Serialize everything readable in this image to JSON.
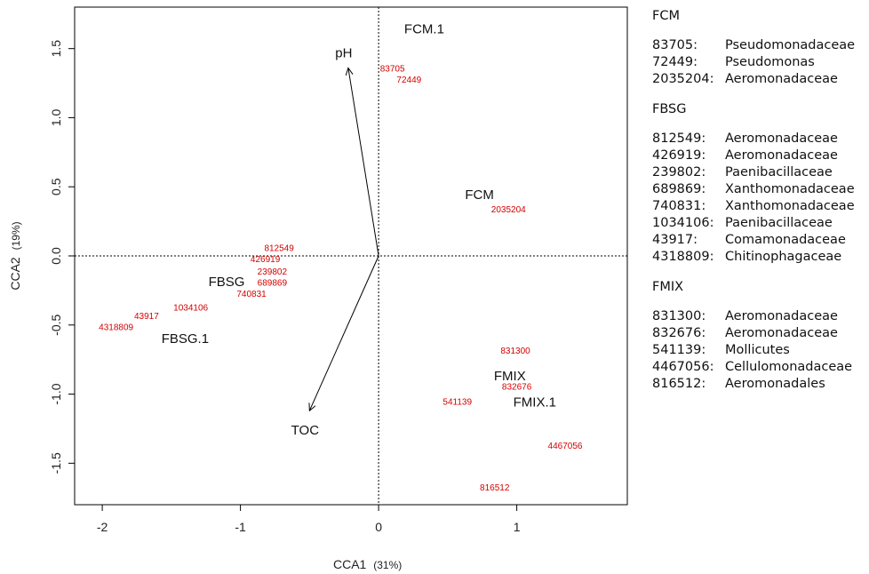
{
  "chart_data": {
    "type": "scatter",
    "xlabel": "CCA1",
    "xlabel_unit": "(31%)",
    "ylabel": "CCA2",
    "ylabel_unit": "(19%)",
    "xlim": [
      -2.2,
      1.8
    ],
    "ylim": [
      -1.8,
      1.8
    ],
    "x_ticks": [
      -2,
      -1,
      0,
      1
    ],
    "y_ticks": [
      -1.5,
      -1.0,
      -0.5,
      0.0,
      0.5,
      1.0,
      1.5
    ],
    "x_tick_labels": [
      "-2",
      "-1",
      "0",
      "1"
    ],
    "y_tick_labels": [
      "-1.5",
      "-1.0",
      "-0.5",
      "0.0",
      "0.5",
      "1.0",
      "1.5"
    ],
    "reference_lines": {
      "x": 0,
      "y": 0,
      "style": "dotted"
    },
    "grid": false,
    "arrows": [
      {
        "name": "pH",
        "x": -0.22,
        "y": 1.36
      },
      {
        "name": "TOC",
        "x": -0.5,
        "y": -1.12
      }
    ],
    "sites": [
      {
        "name": "FCM.1",
        "x": 0.33,
        "y": 1.64
      },
      {
        "name": "FCM",
        "x": 0.73,
        "y": 0.44
      },
      {
        "name": "FBSG",
        "x": -1.1,
        "y": -0.19
      },
      {
        "name": "FBSG.1",
        "x": -1.4,
        "y": -0.6
      },
      {
        "name": "FMIX",
        "x": 0.95,
        "y": -0.87
      },
      {
        "name": "FMIX.1",
        "x": 1.13,
        "y": -1.06
      }
    ],
    "species": [
      {
        "name": "83705",
        "x": 0.1,
        "y": 1.35
      },
      {
        "name": "72449",
        "x": 0.22,
        "y": 1.27
      },
      {
        "name": "2035204",
        "x": 0.94,
        "y": 0.33
      },
      {
        "name": "812549",
        "x": -0.72,
        "y": 0.05
      },
      {
        "name": "426919",
        "x": -0.82,
        "y": -0.03
      },
      {
        "name": "239802",
        "x": -0.77,
        "y": -0.12
      },
      {
        "name": "689869",
        "x": -0.77,
        "y": -0.2
      },
      {
        "name": "740831",
        "x": -0.92,
        "y": -0.28
      },
      {
        "name": "1034106",
        "x": -1.36,
        "y": -0.38
      },
      {
        "name": "43917",
        "x": -1.68,
        "y": -0.44
      },
      {
        "name": "4318809",
        "x": -1.9,
        "y": -0.52
      },
      {
        "name": "831300",
        "x": 0.99,
        "y": -0.69
      },
      {
        "name": "832676",
        "x": 1.0,
        "y": -0.95
      },
      {
        "name": "541139",
        "x": 0.57,
        "y": -1.06
      },
      {
        "name": "4467056",
        "x": 1.35,
        "y": -1.38
      },
      {
        "name": "816512",
        "x": 0.84,
        "y": -1.68
      }
    ]
  },
  "legend": [
    {
      "title": "FCM",
      "entries": [
        {
          "id": "83705:",
          "taxon": "Pseudomonadaceae"
        },
        {
          "id": "72449:",
          "taxon": "Pseudomonas"
        },
        {
          "id": "2035204:",
          "taxon": "Aeromonadaceae"
        }
      ]
    },
    {
      "title": "FBSG",
      "entries": [
        {
          "id": "812549:",
          "taxon": "Aeromonadaceae"
        },
        {
          "id": "426919:",
          "taxon": "Aeromonadaceae"
        },
        {
          "id": "239802:",
          "taxon": "Paenibacillaceae"
        },
        {
          "id": "689869:",
          "taxon": "Xanthomonadaceae"
        },
        {
          "id": "740831:",
          "taxon": "Xanthomonadaceae"
        },
        {
          "id": "1034106:",
          "taxon": "Paenibacillaceae"
        },
        {
          "id": "43917:",
          "taxon": "Comamonadaceae"
        },
        {
          "id": "4318809:",
          "taxon": "Chitinophagaceae"
        }
      ]
    },
    {
      "title": "FMIX",
      "entries": [
        {
          "id": "831300:",
          "taxon": "Aeromonadaceae"
        },
        {
          "id": "832676:",
          "taxon": "Aeromonadaceae"
        },
        {
          "id": "541139:",
          "taxon": "Mollicutes"
        },
        {
          "id": "4467056:",
          "taxon": "Cellulomonadaceae"
        },
        {
          "id": "816512:",
          "taxon": "Aeromonadales"
        }
      ]
    }
  ],
  "colors": {
    "species": "#d40000",
    "text": "#111111",
    "axis": "#000000"
  }
}
